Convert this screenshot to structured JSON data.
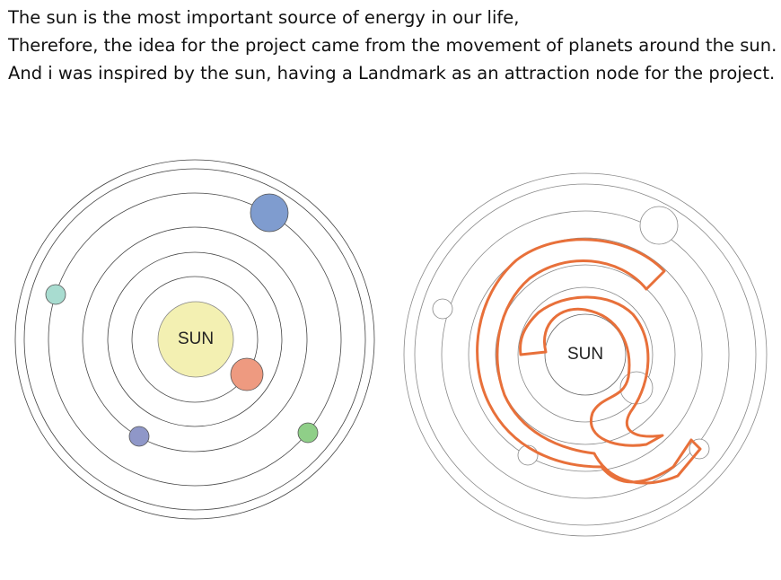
{
  "paragraph": {
    "lines": [
      "The sun is the most important source of energy in our life,",
      "Therefore, the idea for the project came from the movement of planets around the sun.",
      "And i was inspired by the sun, having a Landmark as an attraction node for the project."
    ]
  },
  "diagrams": [
    {
      "label": "SUN"
    },
    {
      "label": "SUN"
    }
  ]
}
